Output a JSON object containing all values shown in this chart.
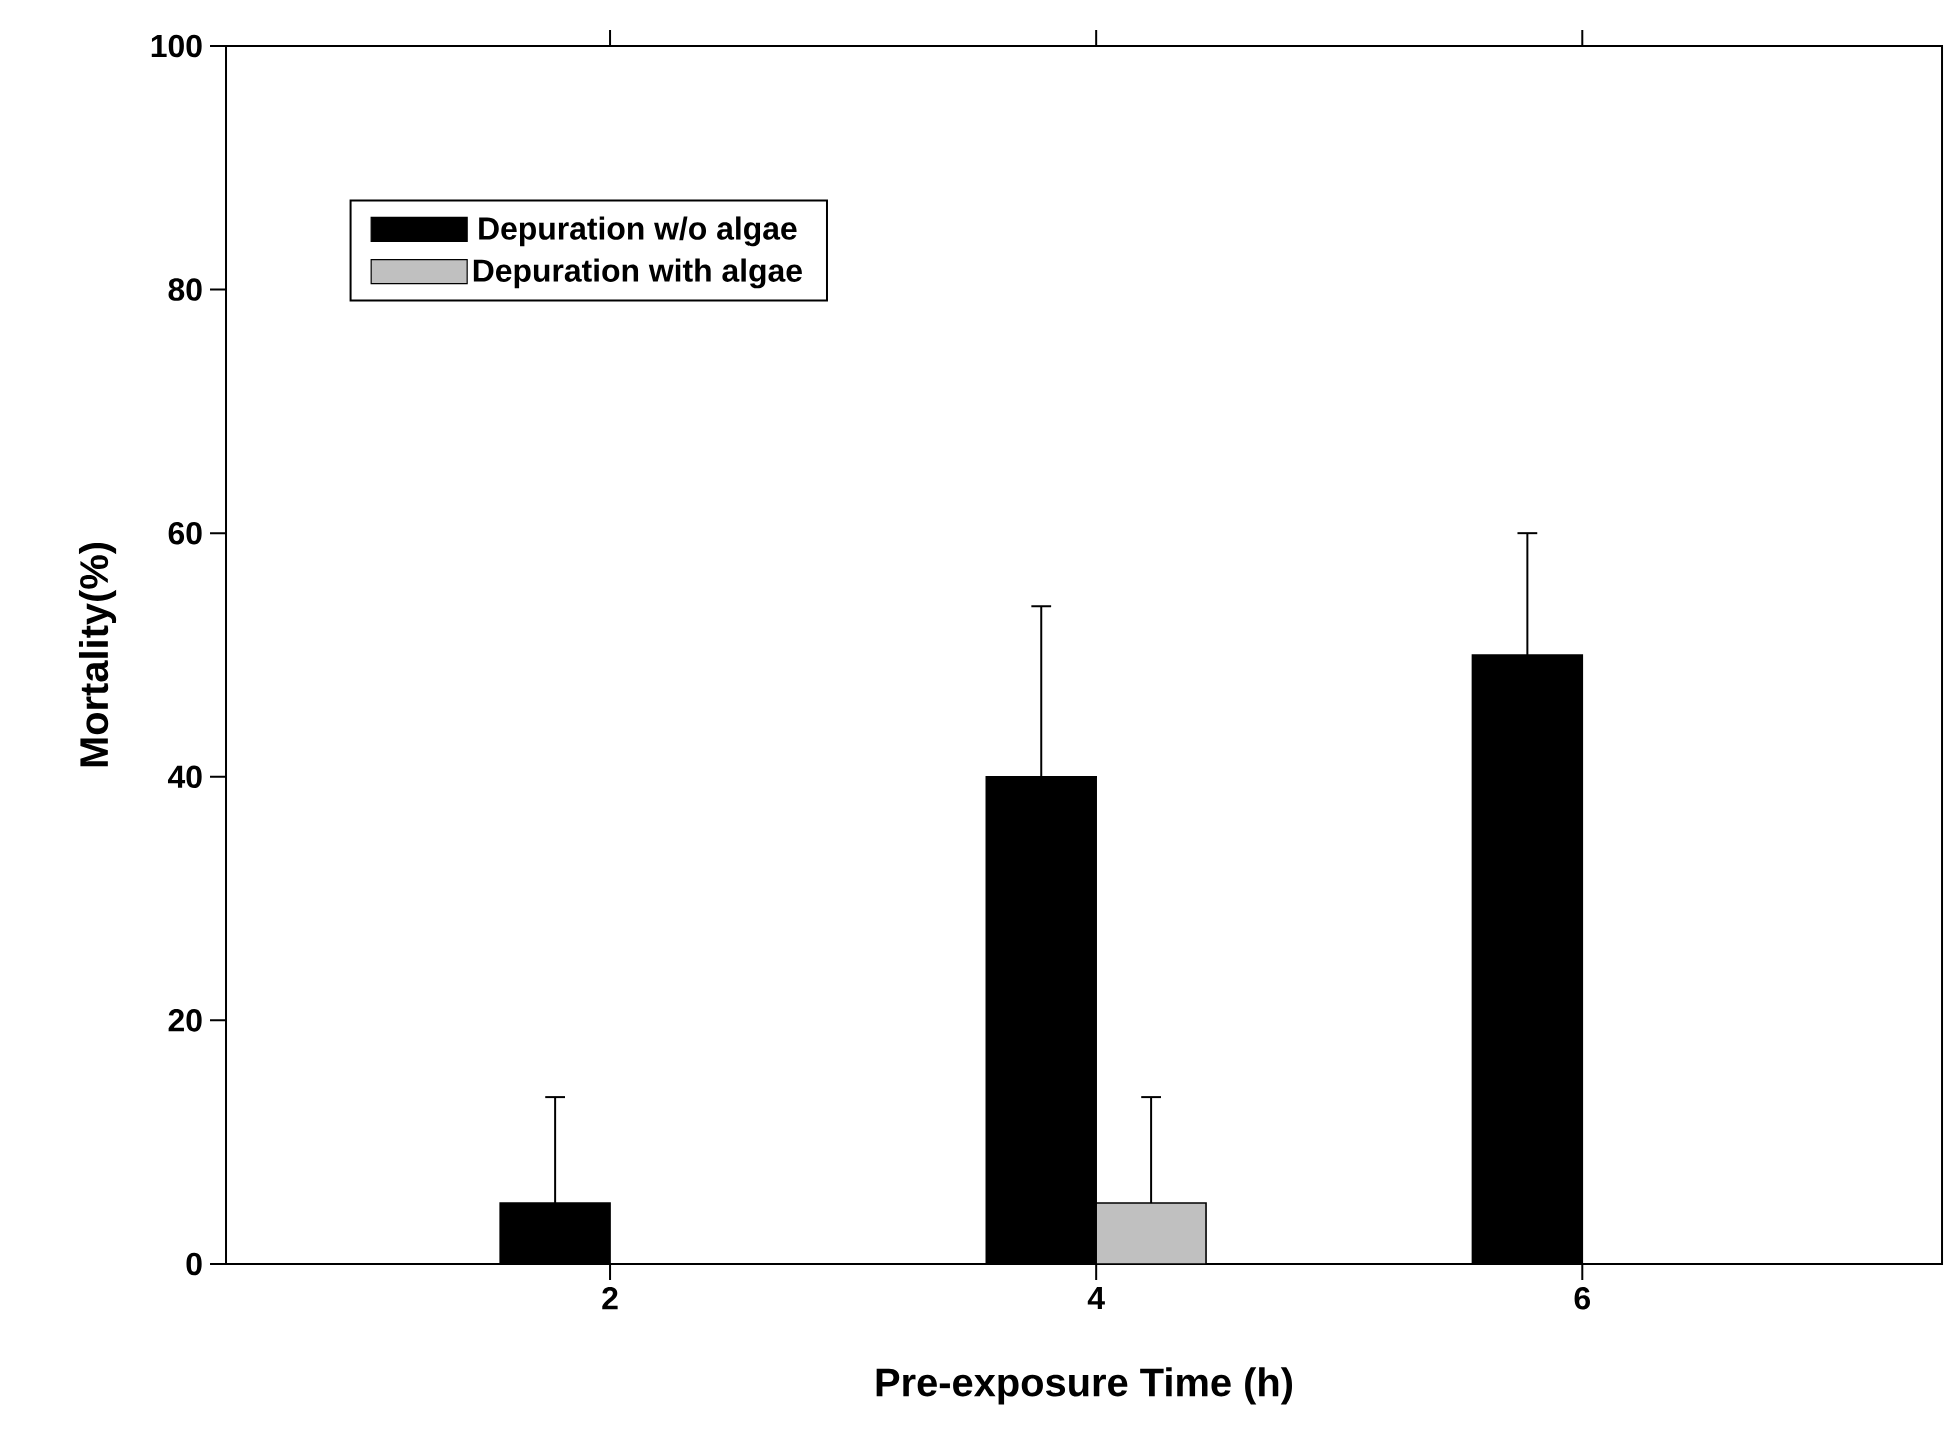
{
  "chart_data": {
    "type": "bar",
    "xlabel": "Pre-exposure Time (h)",
    "ylabel": "Mortality(%)",
    "categories": [
      "2",
      "4",
      "6"
    ],
    "series": [
      {
        "name": "Depuration w/o algae",
        "color": "#000000",
        "values": [
          5,
          40,
          50
        ],
        "errors": [
          [
            5,
            13.7
          ],
          [
            40,
            54
          ],
          [
            50,
            60
          ]
        ]
      },
      {
        "name": "Depuration with algae",
        "color": "#c0c0c0",
        "values": [
          0,
          5,
          0
        ],
        "errors": [
          null,
          [
            5,
            13.7
          ],
          null
        ]
      }
    ],
    "ylim": [
      0,
      100
    ],
    "yticks": [
      0,
      20,
      40,
      60,
      80,
      100
    ],
    "grid": false,
    "legend": "top left"
  }
}
